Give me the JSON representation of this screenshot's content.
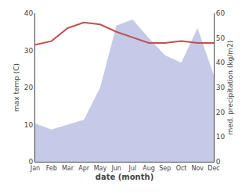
{
  "chart_data": {
    "type": "line",
    "categories": [
      "Jan",
      "Feb",
      "Mar",
      "Apr",
      "May",
      "Jun",
      "Jul",
      "Aug",
      "Sep",
      "Oct",
      "Nov",
      "Dec"
    ],
    "series": [
      {
        "type": "area",
        "color": "#c5cae9",
        "axis": "y2",
        "values": [
          15.5,
          13.0,
          15.0,
          17.0,
          30.0,
          55.0,
          57.5,
          50.0,
          43.0,
          40.0,
          54.0,
          35.0
        ]
      },
      {
        "type": "line",
        "color": "#c0504d",
        "values": [
          31.5,
          32.5,
          36.0,
          37.5,
          37.0,
          35.0,
          33.5,
          32.0,
          32.0,
          32.5,
          32.0,
          32.0
        ]
      }
    ],
    "xlabel": "date (month)",
    "ylabel": "max temp (C)",
    "y2label": "med. precipitation (kg/m2)",
    "ylim": [
      0,
      40
    ],
    "yticks": [
      0,
      10,
      20,
      30,
      40
    ],
    "y2lim": [
      0,
      60
    ],
    "y2ticks": [
      0,
      10,
      20,
      30,
      40,
      50,
      60
    ],
    "grid": false
  }
}
